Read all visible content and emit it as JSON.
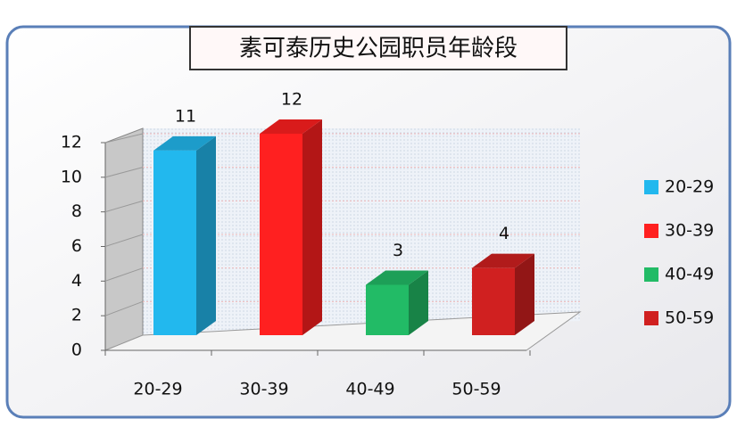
{
  "chart_data": {
    "type": "bar",
    "title": "素可泰历史公园职员年龄段",
    "categories": [
      "20-29",
      "30-39",
      "40-49",
      "50-59"
    ],
    "values": [
      11,
      12,
      3,
      4
    ],
    "colors": [
      "#22b8ee",
      "#ff2020",
      "#22bb66",
      "#d02020"
    ],
    "ylim": [
      0,
      12
    ],
    "yticks": [
      0,
      2,
      4,
      6,
      8,
      10,
      12
    ],
    "grid": true,
    "legend": "right"
  }
}
